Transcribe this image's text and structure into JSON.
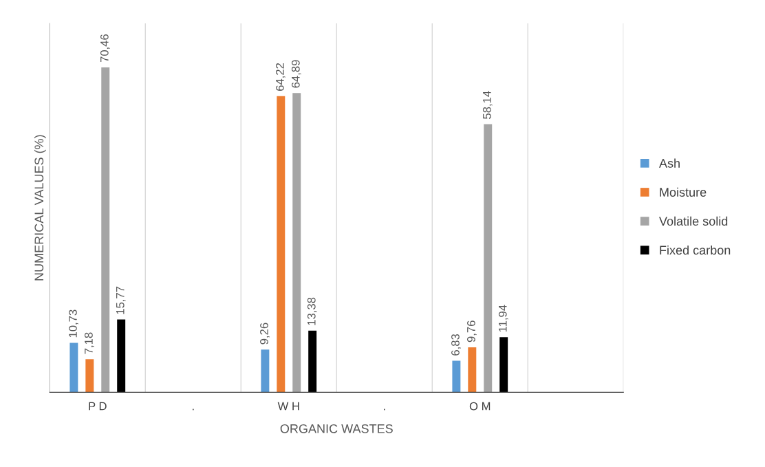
{
  "chart_data": {
    "type": "bar",
    "xlabel": "ORGANIC WASTES",
    "ylabel": "NUMERICAL VALUES (%)",
    "categories": [
      "P D",
      ".",
      "W H",
      ".",
      "O M",
      null
    ],
    "series": [
      {
        "name": "Ash",
        "color": "#5b9bd5",
        "values": [
          10.73,
          null,
          9.26,
          null,
          6.83,
          null
        ],
        "value_labels": [
          "10,73",
          null,
          "9,26",
          null,
          "6,83",
          null
        ]
      },
      {
        "name": "Moisture",
        "color": "#ed7d31",
        "values": [
          7.18,
          null,
          64.22,
          null,
          9.76,
          null
        ],
        "value_labels": [
          "7,18",
          null,
          "64,22",
          null,
          "9,76",
          null
        ]
      },
      {
        "name": "Volatile solid",
        "color": "#a5a5a5",
        "values": [
          70.46,
          null,
          64.89,
          null,
          58.14,
          null
        ],
        "value_labels": [
          "70,46",
          null,
          "64,89",
          null,
          "58,14",
          null
        ]
      },
      {
        "name": "Fixed carbon",
        "color": "#000000",
        "values": [
          15.77,
          null,
          13.38,
          null,
          11.94,
          null
        ],
        "value_labels": [
          "15,77",
          null,
          "13,38",
          null,
          "11,94",
          null
        ]
      }
    ],
    "ylim": [
      0,
      80
    ],
    "tick_labels": "x",
    "grid": "x",
    "legend": "right"
  }
}
